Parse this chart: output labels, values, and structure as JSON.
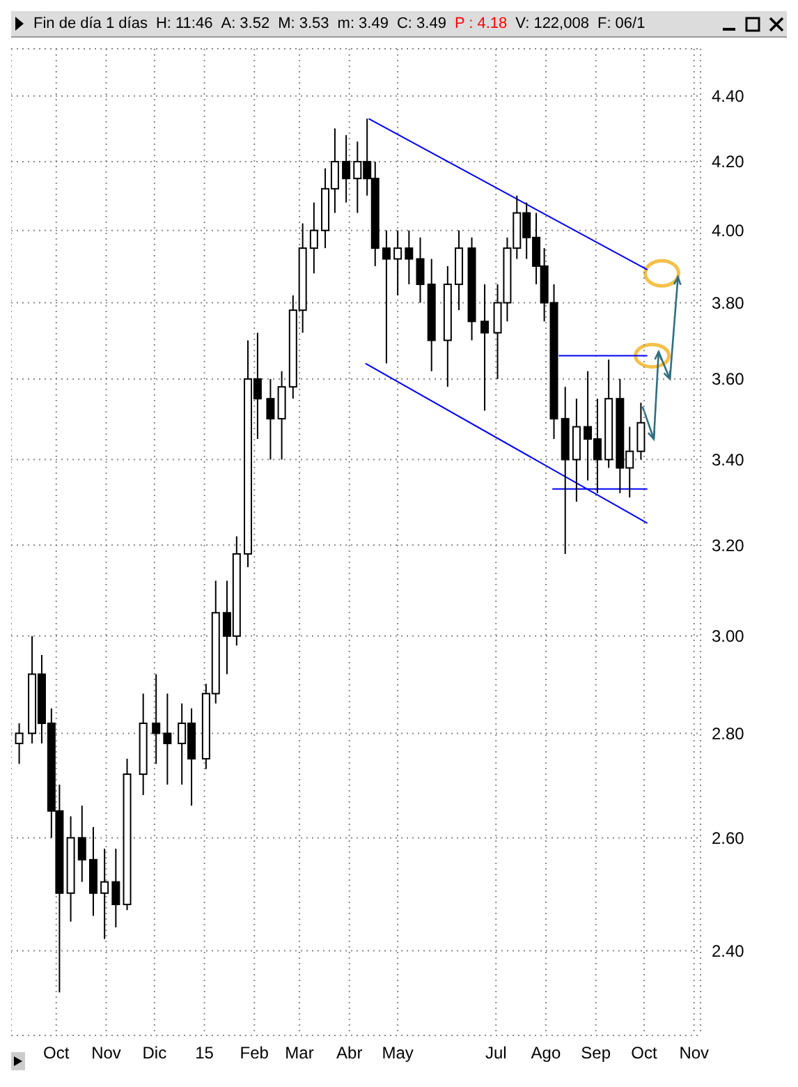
{
  "chart_data": {
    "type": "candlestick",
    "title": "Fin de día 1 días",
    "annotations": [
      "H: 11:46",
      "A: 3.52",
      "M: 3.53",
      "m: 3.49",
      "C: 3.49",
      "P : 4.18",
      "V: 122,008",
      "F: 06/1"
    ],
    "color": "#000000",
    "x": [
      "2014-09-08",
      "2014-09-16",
      "2014-09-22",
      "2014-09-28",
      "2014-10-03",
      "2014-10-10",
      "2014-10-17",
      "2014-10-24",
      "2014-10-31",
      "2014-11-07",
      "2014-11-14",
      "2014-11-24",
      "2014-12-02",
      "2014-12-09",
      "2014-12-18",
      "2014-12-24",
      "2015-01-02",
      "2015-01-08",
      "2015-01-15",
      "2015-01-21",
      "2015-01-28",
      "2015-02-03",
      "2015-02-11",
      "2015-02-18",
      "2015-02-25",
      "2015-03-03",
      "2015-03-10",
      "2015-03-17",
      "2015-03-23",
      "2015-03-30",
      "2015-04-06",
      "2015-04-12",
      "2015-04-17",
      "2015-04-24",
      "2015-05-01",
      "2015-05-08",
      "2015-05-15",
      "2015-05-22",
      "2015-06-01",
      "2015-06-08",
      "2015-06-16",
      "2015-06-24",
      "2015-07-02",
      "2015-07-08",
      "2015-07-14",
      "2015-07-20",
      "2015-07-26",
      "2015-07-31",
      "2015-08-06",
      "2015-08-13",
      "2015-08-20",
      "2015-08-27",
      "2015-09-02",
      "2015-09-09",
      "2015-09-16",
      "2015-09-22",
      "2015-09-29"
    ],
    "ohlc": [
      [
        2.78,
        2.82,
        2.74,
        2.8
      ],
      [
        2.8,
        3.0,
        2.78,
        2.92
      ],
      [
        2.92,
        2.96,
        2.78,
        2.82
      ],
      [
        2.82,
        2.85,
        2.6,
        2.65
      ],
      [
        2.65,
        2.7,
        2.33,
        2.5
      ],
      [
        2.5,
        2.64,
        2.45,
        2.6
      ],
      [
        2.6,
        2.66,
        2.52,
        2.56
      ],
      [
        2.56,
        2.62,
        2.46,
        2.5
      ],
      [
        2.5,
        2.58,
        2.42,
        2.52
      ],
      [
        2.52,
        2.58,
        2.44,
        2.48
      ],
      [
        2.48,
        2.75,
        2.47,
        2.72
      ],
      [
        2.72,
        2.88,
        2.68,
        2.82
      ],
      [
        2.82,
        2.92,
        2.74,
        2.8
      ],
      [
        2.8,
        2.88,
        2.7,
        2.78
      ],
      [
        2.78,
        2.86,
        2.7,
        2.82
      ],
      [
        2.82,
        2.85,
        2.66,
        2.75
      ],
      [
        2.75,
        2.9,
        2.73,
        2.88
      ],
      [
        2.88,
        3.12,
        2.86,
        3.05
      ],
      [
        3.05,
        3.12,
        2.92,
        3.0
      ],
      [
        3.0,
        3.22,
        2.98,
        3.18
      ],
      [
        3.18,
        3.7,
        3.15,
        3.6
      ],
      [
        3.6,
        3.72,
        3.45,
        3.55
      ],
      [
        3.55,
        3.6,
        3.4,
        3.5
      ],
      [
        3.5,
        3.62,
        3.4,
        3.58
      ],
      [
        3.58,
        3.82,
        3.55,
        3.78
      ],
      [
        3.78,
        4.02,
        3.72,
        3.95
      ],
      [
        3.95,
        4.08,
        3.88,
        4.0
      ],
      [
        4.0,
        4.18,
        3.95,
        4.12
      ],
      [
        4.12,
        4.3,
        4.05,
        4.2
      ],
      [
        4.2,
        4.28,
        4.08,
        4.15
      ],
      [
        4.15,
        4.26,
        4.05,
        4.2
      ],
      [
        4.2,
        4.33,
        4.1,
        4.15
      ],
      [
        4.15,
        4.2,
        3.9,
        3.95
      ],
      [
        3.95,
        4.0,
        3.64,
        3.92
      ],
      [
        3.92,
        4.0,
        3.82,
        3.95
      ],
      [
        3.95,
        4.0,
        3.85,
        3.92
      ],
      [
        3.92,
        3.98,
        3.8,
        3.85
      ],
      [
        3.85,
        3.92,
        3.62,
        3.7
      ],
      [
        3.7,
        3.9,
        3.58,
        3.85
      ],
      [
        3.85,
        4.0,
        3.78,
        3.95
      ],
      [
        3.95,
        3.98,
        3.7,
        3.75
      ],
      [
        3.75,
        3.85,
        3.52,
        3.72
      ],
      [
        3.72,
        3.85,
        3.6,
        3.8
      ],
      [
        3.8,
        3.98,
        3.75,
        3.95
      ],
      [
        3.95,
        4.1,
        3.92,
        4.05
      ],
      [
        4.05,
        4.08,
        3.92,
        3.98
      ],
      [
        3.98,
        4.05,
        3.85,
        3.9
      ],
      [
        3.9,
        3.95,
        3.75,
        3.8
      ],
      [
        3.8,
        3.85,
        3.45,
        3.5
      ],
      [
        3.5,
        3.58,
        3.18,
        3.4
      ],
      [
        3.4,
        3.55,
        3.3,
        3.48
      ],
      [
        3.48,
        3.62,
        3.35,
        3.45
      ],
      [
        3.45,
        3.55,
        3.32,
        3.4
      ],
      [
        3.4,
        3.65,
        3.38,
        3.55
      ],
      [
        3.55,
        3.6,
        3.32,
        3.38
      ],
      [
        3.38,
        3.48,
        3.31,
        3.42
      ],
      [
        3.42,
        3.54,
        3.4,
        3.49
      ]
    ],
    "series": [
      {
        "type": "line",
        "color": "#0000ff",
        "x": [
          "2015-04-13",
          "2015-10-03"
        ],
        "values": [
          4.33,
          3.89
        ]
      },
      {
        "type": "line",
        "color": "#0000ff",
        "x": [
          "2015-04-11",
          "2015-10-03"
        ],
        "values": [
          3.64,
          3.25
        ]
      },
      {
        "type": "line",
        "color": "#0000ff",
        "x": [
          "2015-08-09",
          "2015-10-03"
        ],
        "values": [
          3.66,
          3.66
        ]
      },
      {
        "type": "line",
        "color": "#0000ff",
        "x": [
          "2015-08-05",
          "2015-10-03"
        ],
        "values": [
          3.33,
          3.33
        ]
      }
    ],
    "log": true,
    "grid": true,
    "xlim": [
      "2014-09-03",
      "2015-11-05"
    ],
    "xticks": [
      {
        "value": "2014-10-01",
        "label": "Oct"
      },
      {
        "value": "2014-11-01",
        "label": "Nov"
      },
      {
        "value": "2014-12-01",
        "label": "Dic"
      },
      {
        "value": "2015-01-01",
        "label": "15"
      },
      {
        "value": "2015-02-01",
        "label": "Feb"
      },
      {
        "value": "2015-03-01",
        "label": "Mar"
      },
      {
        "value": "2015-04-01",
        "label": "Abr"
      },
      {
        "value": "2015-05-01",
        "label": "May"
      },
      {
        "value": "2015-07-01",
        "label": "Jul"
      },
      {
        "value": "2015-08-01",
        "label": "Ago"
      },
      {
        "value": "2015-09-01",
        "label": "Sep"
      },
      {
        "value": "2015-10-01",
        "label": "Oct"
      },
      {
        "value": "2015-11-01",
        "label": "Nov"
      }
    ],
    "ylim": [
      2.26,
      4.55
    ],
    "yticks": [
      {
        "value": 2.4,
        "label": "2.40"
      },
      {
        "value": 2.6,
        "label": "2.60"
      },
      {
        "value": 2.8,
        "label": "2.80"
      },
      {
        "value": 3.0,
        "label": "3.00"
      },
      {
        "value": 3.2,
        "label": "3.20"
      },
      {
        "value": 3.4,
        "label": "3.40"
      },
      {
        "value": 3.6,
        "label": "3.60"
      },
      {
        "value": 3.8,
        "label": "3.80"
      },
      {
        "value": 4.0,
        "label": "4.00"
      },
      {
        "value": 4.2,
        "label": "4.20"
      },
      {
        "value": 4.4,
        "label": "4.40"
      }
    ]
  }
}
